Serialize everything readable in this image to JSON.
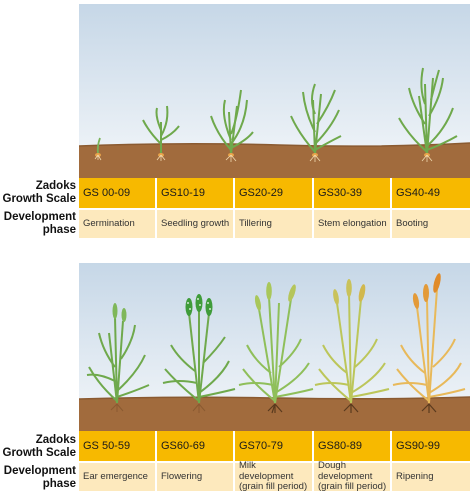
{
  "row_labels": {
    "scale": [
      "Zadoks",
      "Growth Scale"
    ],
    "phase": [
      "Development",
      "phase"
    ]
  },
  "panels": [
    {
      "stages": [
        {
          "code": "GS 00-09",
          "phase": "Germination"
        },
        {
          "code": "GS10-19",
          "phase": "Seedling growth"
        },
        {
          "code": "GS20-29",
          "phase": "Tillering"
        },
        {
          "code": "GS30-39",
          "phase": "Stem elongation"
        },
        {
          "code": "GS40-49",
          "phase": "Booting"
        }
      ]
    },
    {
      "stages": [
        {
          "code": "GS 50-59",
          "phase": "Ear emergence"
        },
        {
          "code": "GS60-69",
          "phase": "Flowering"
        },
        {
          "code": "GS70-79",
          "phase": "Milk development (grain fill period)"
        },
        {
          "code": "GS80-89",
          "phase": "Dough development (grain fill period)"
        },
        {
          "code": "GS90-99",
          "phase": "Ripening"
        }
      ]
    }
  ],
  "colors": {
    "sky_top": "#c9d9e8",
    "sky_bottom": "#f3f6f9",
    "soil": "#a06a3c",
    "code_cell": "#f7b900",
    "phase_cell": "#fde9bd"
  }
}
